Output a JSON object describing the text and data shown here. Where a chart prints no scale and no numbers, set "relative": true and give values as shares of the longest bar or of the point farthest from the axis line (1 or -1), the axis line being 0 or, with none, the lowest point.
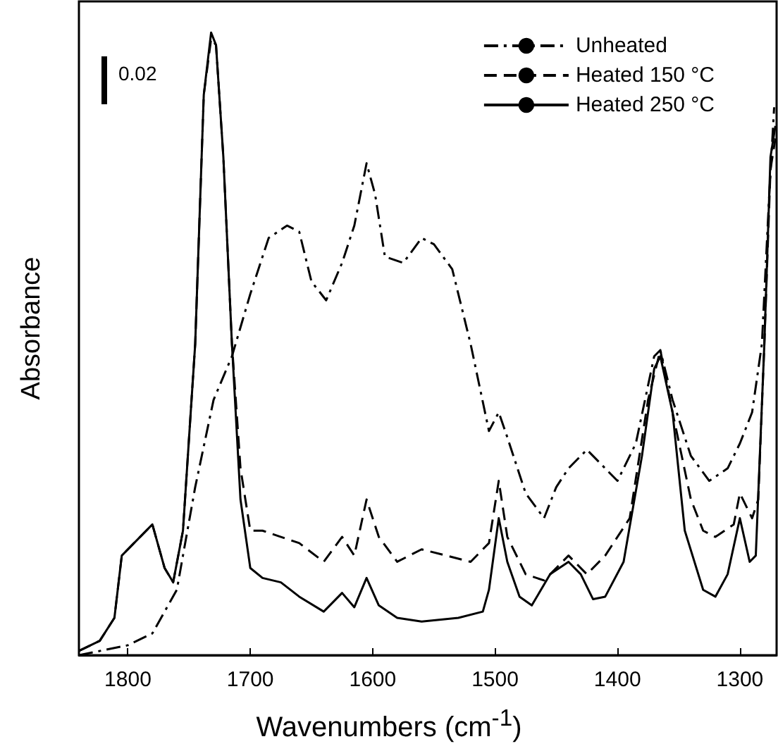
{
  "chart_data": {
    "type": "line",
    "xlabel": "Wavenumbers (cm$^{-1}$)",
    "ylabel": "Absorbance",
    "relative": true,
    "xlim": [
      1840,
      1270
    ],
    "xticks": [
      1800,
      1700,
      1600,
      1500,
      1400,
      1300
    ],
    "tick_labels": "x",
    "legend": "top right",
    "grid": false,
    "annotations": [
      "0.02"
    ],
    "series": [
      {
        "name": "Unheated",
        "color": "#000000",
        "line_style": "dashdot",
        "x": [
          1840,
          1800,
          1780,
          1760,
          1745,
          1730,
          1715,
          1700,
          1685,
          1670,
          1660,
          1650,
          1638,
          1625,
          1615,
          1605,
          1598,
          1590,
          1575,
          1560,
          1550,
          1535,
          1520,
          1505,
          1497,
          1490,
          1475,
          1460,
          1450,
          1440,
          1425,
          1415,
          1400,
          1385,
          1370,
          1365,
          1355,
          1340,
          1325,
          1310,
          1300,
          1290,
          1282,
          1276,
          1272
        ],
        "values": [
          0,
          0.016,
          0.035,
          0.105,
          0.27,
          0.41,
          0.48,
          0.58,
          0.67,
          0.69,
          0.68,
          0.6,
          0.57,
          0.63,
          0.69,
          0.79,
          0.74,
          0.64,
          0.63,
          0.67,
          0.66,
          0.62,
          0.5,
          0.36,
          0.39,
          0.35,
          0.26,
          0.22,
          0.27,
          0.3,
          0.33,
          0.31,
          0.28,
          0.34,
          0.48,
          0.49,
          0.41,
          0.32,
          0.28,
          0.3,
          0.34,
          0.39,
          0.5,
          0.74,
          0.88
        ]
      },
      {
        "name": "Heated 150 °C",
        "color": "#000000",
        "line_style": "dashed",
        "x": [
          1840,
          1823,
          1811,
          1805,
          1780,
          1770,
          1763,
          1755,
          1745,
          1738,
          1732,
          1728,
          1722,
          1715,
          1708,
          1700,
          1690,
          1675,
          1660,
          1640,
          1625,
          1615,
          1605,
          1595,
          1580,
          1560,
          1540,
          1520,
          1505,
          1497,
          1490,
          1475,
          1460,
          1440,
          1425,
          1410,
          1390,
          1375,
          1365,
          1355,
          1340,
          1330,
          1320,
          1305,
          1300,
          1290,
          1285,
          1280,
          1275,
          1271
        ],
        "values": [
          0.007,
          0.023,
          0.06,
          0.16,
          0.21,
          0.14,
          0.117,
          0.2,
          0.5,
          0.9,
          0.99,
          0.98,
          0.8,
          0.5,
          0.3,
          0.2,
          0.2,
          0.19,
          0.18,
          0.15,
          0.19,
          0.16,
          0.25,
          0.19,
          0.15,
          0.17,
          0.16,
          0.15,
          0.18,
          0.28,
          0.19,
          0.13,
          0.12,
          0.16,
          0.13,
          0.16,
          0.22,
          0.41,
          0.49,
          0.39,
          0.25,
          0.2,
          0.19,
          0.21,
          0.26,
          0.22,
          0.25,
          0.5,
          0.78,
          0.83
        ]
      },
      {
        "name": "Heated 250 °C",
        "color": "#000000",
        "line_style": "solid",
        "x": [
          1840,
          1823,
          1811,
          1805,
          1780,
          1770,
          1763,
          1755,
          1745,
          1738,
          1732,
          1728,
          1722,
          1715,
          1708,
          1700,
          1690,
          1675,
          1660,
          1640,
          1625,
          1615,
          1605,
          1595,
          1580,
          1560,
          1530,
          1510,
          1505,
          1497,
          1490,
          1480,
          1470,
          1455,
          1440,
          1430,
          1420,
          1410,
          1395,
          1380,
          1370,
          1365,
          1355,
          1345,
          1330,
          1320,
          1310,
          1300,
          1292,
          1287,
          1280,
          1275,
          1271
        ],
        "values": [
          0.007,
          0.023,
          0.06,
          0.16,
          0.21,
          0.14,
          0.117,
          0.2,
          0.5,
          0.9,
          1,
          0.98,
          0.8,
          0.5,
          0.25,
          0.14,
          0.124,
          0.117,
          0.094,
          0.07,
          0.1,
          0.077,
          0.124,
          0.08,
          0.06,
          0.054,
          0.06,
          0.07,
          0.105,
          0.22,
          0.15,
          0.094,
          0.08,
          0.13,
          0.15,
          0.13,
          0.09,
          0.094,
          0.15,
          0.32,
          0.46,
          0.48,
          0.39,
          0.2,
          0.105,
          0.094,
          0.13,
          0.22,
          0.15,
          0.16,
          0.5,
          0.8,
          0.85
        ]
      }
    ]
  }
}
